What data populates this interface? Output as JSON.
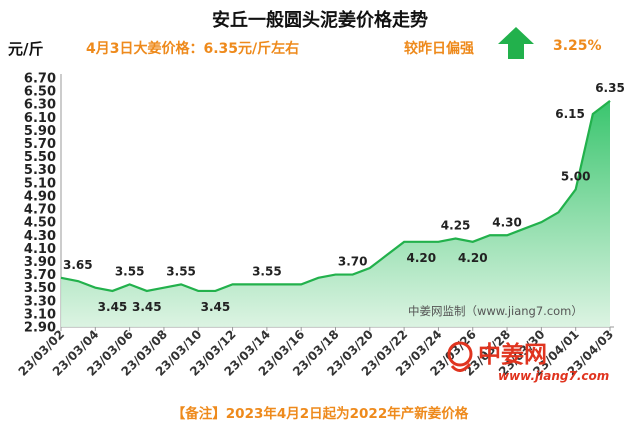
{
  "header": {
    "title": "安丘一般圆头泥姜价格走势",
    "unit": "元/斤",
    "price_note": "4月3日大姜价格：6.35元/斤左右",
    "compare_label": "较昨日偏强",
    "change_pct": "3.25%",
    "trend_icon": "up-arrow-icon",
    "trend_color": "#22b14c"
  },
  "footnote": "【备注】2023年4月2日起为2022年产新姜价格",
  "watermark": "中姜网监制（www.jiang7.com）",
  "logo": {
    "text": "中姜网",
    "url": "www.jiang7.com",
    "icon": "ginger-logo-icon"
  },
  "chart_data": {
    "type": "area",
    "ylim": [
      2.9,
      6.7
    ],
    "yticks": [
      "2.90",
      "3.10",
      "3.30",
      "3.50",
      "3.70",
      "3.90",
      "4.10",
      "4.30",
      "4.50",
      "4.70",
      "4.90",
      "5.10",
      "5.30",
      "5.50",
      "5.70",
      "5.90",
      "6.10",
      "6.30",
      "6.50",
      "6.70"
    ],
    "x": [
      "23/03/02",
      "23/03/03",
      "23/03/04",
      "23/03/05",
      "23/03/06",
      "23/03/07",
      "23/03/08",
      "23/03/09",
      "23/03/10",
      "23/03/11",
      "23/03/12",
      "23/03/13",
      "23/03/14",
      "23/03/15",
      "23/03/16",
      "23/03/17",
      "23/03/18",
      "23/03/19",
      "23/03/20",
      "23/03/21",
      "23/03/22",
      "23/03/23",
      "23/03/24",
      "23/03/25",
      "23/03/26",
      "23/03/27",
      "23/03/28",
      "23/03/29",
      "23/03/30",
      "23/03/31",
      "23/04/01",
      "23/04/02",
      "23/04/03"
    ],
    "xtick_labels": [
      "23/03/02",
      "23/03/04",
      "23/03/06",
      "23/03/08",
      "23/03/10",
      "23/03/12",
      "23/03/14",
      "23/03/16",
      "23/03/18",
      "23/03/20",
      "23/03/22",
      "23/03/24",
      "23/03/26",
      "23/03/28",
      "23/03/30",
      "23/04/01",
      "23/04/03"
    ],
    "values": [
      3.65,
      3.6,
      3.5,
      3.45,
      3.55,
      3.45,
      3.5,
      3.55,
      3.45,
      3.45,
      3.55,
      3.55,
      3.55,
      3.55,
      3.55,
      3.65,
      3.7,
      3.7,
      3.8,
      4.0,
      4.2,
      4.2,
      4.2,
      4.25,
      4.2,
      4.3,
      4.3,
      4.4,
      4.5,
      4.65,
      5.0,
      6.15,
      6.35
    ],
    "data_labels": [
      {
        "index": 0,
        "text": "3.65",
        "pos": "above"
      },
      {
        "index": 3,
        "text": "3.45",
        "pos": "below"
      },
      {
        "index": 4,
        "text": "3.55",
        "pos": "above"
      },
      {
        "index": 5,
        "text": "3.45",
        "pos": "below"
      },
      {
        "index": 7,
        "text": "3.55",
        "pos": "above"
      },
      {
        "index": 9,
        "text": "3.45",
        "pos": "below"
      },
      {
        "index": 12,
        "text": "3.55",
        "pos": "above"
      },
      {
        "index": 17,
        "text": "3.70",
        "pos": "above"
      },
      {
        "index": 21,
        "text": "4.20",
        "pos": "below"
      },
      {
        "index": 23,
        "text": "4.25",
        "pos": "above"
      },
      {
        "index": 24,
        "text": "4.20",
        "pos": "below"
      },
      {
        "index": 26,
        "text": "4.30",
        "pos": "above"
      },
      {
        "index": 30,
        "text": "5.00",
        "pos": "above"
      },
      {
        "index": 31,
        "text": "6.15",
        "pos": "left"
      },
      {
        "index": 32,
        "text": "6.35",
        "pos": "above"
      }
    ],
    "colors": {
      "line": "#22b14c",
      "fill_top": "#2fc266",
      "fill_bottom": "#d8f2df"
    },
    "grid": false,
    "legend": "none"
  }
}
